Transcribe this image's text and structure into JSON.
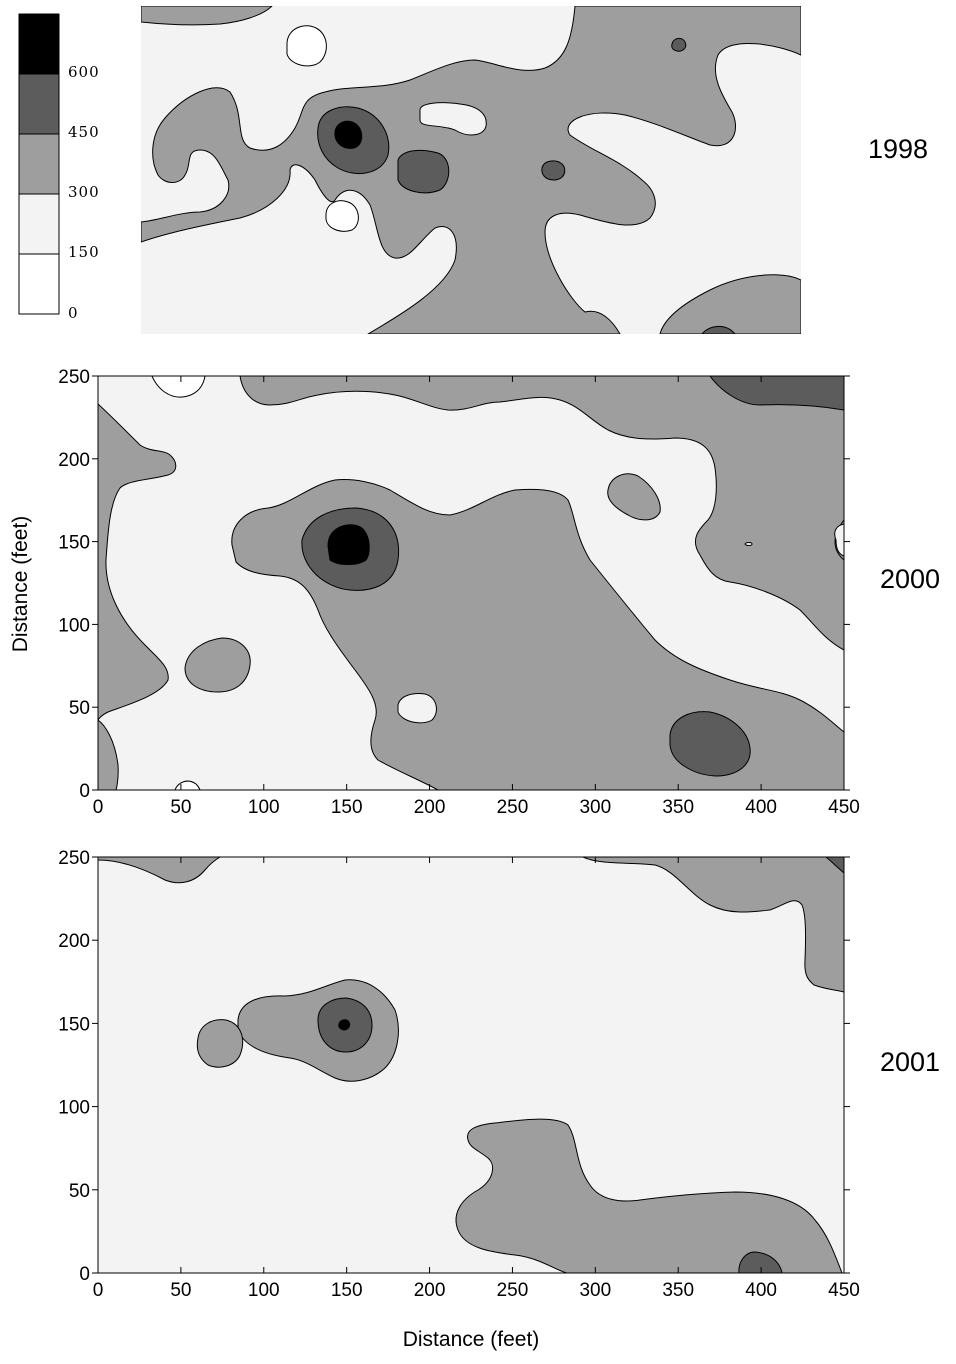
{
  "chart_data": {
    "type": "heatmap",
    "description_kind": "filled contour maps",
    "xlabel": "Distance (feet)",
    "ylabel": "Distance (feet)",
    "xlim": [
      0,
      450
    ],
    "ylim": [
      0,
      250
    ],
    "x_ticks": [
      "0",
      "50",
      "100",
      "150",
      "200",
      "250",
      "300",
      "350",
      "400",
      "450"
    ],
    "y_ticks": [
      "0",
      "50",
      "100",
      "150",
      "200",
      "250"
    ],
    "legend": {
      "levels": [
        "0",
        "150",
        "300",
        "450",
        "600"
      ],
      "bins": [
        {
          "range": [
            0,
            150
          ],
          "color": "#ffffff"
        },
        {
          "range": [
            150,
            300
          ],
          "color": "#f3f3f3"
        },
        {
          "range": [
            300,
            450
          ],
          "color": "#9e9e9e"
        },
        {
          "range": [
            450,
            600
          ],
          "color": "#5c5c5c"
        },
        {
          "range": [
            600,
            750
          ],
          "color": "#000000"
        }
      ]
    },
    "panels": [
      {
        "year": "1998",
        "peak": {
          "x": 150,
          "y": 150,
          "level": "600+"
        }
      },
      {
        "year": "2000",
        "peak": {
          "x": 150,
          "y": 150,
          "level": "600+"
        }
      },
      {
        "year": "2001",
        "peak": {
          "x": 150,
          "y": 150,
          "level": "600+"
        }
      }
    ]
  }
}
